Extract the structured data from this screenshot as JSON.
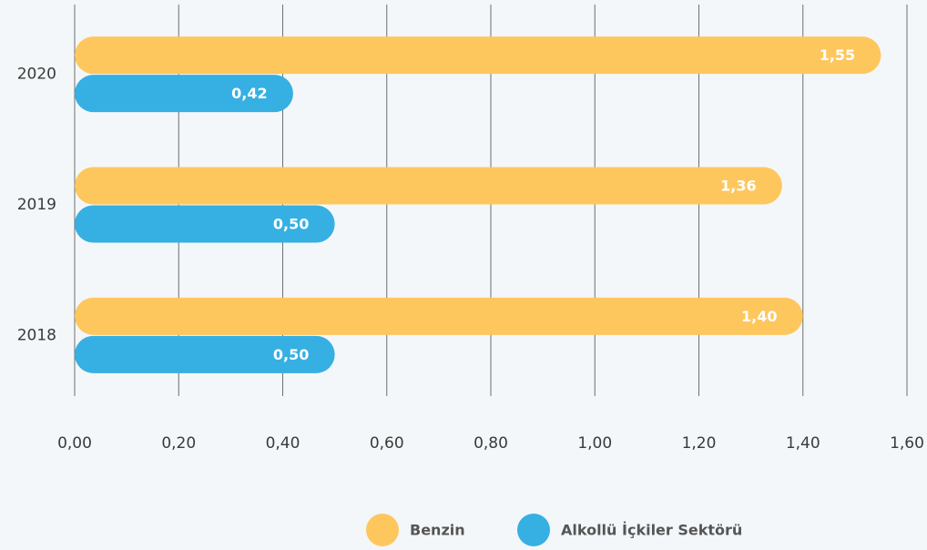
{
  "chart_data": {
    "type": "barh",
    "categories": [
      "2020",
      "2019",
      "2018"
    ],
    "series": [
      {
        "name": "Benzin",
        "color": "#fec75e",
        "values": [
          1.55,
          1.36,
          1.4
        ],
        "value_labels": [
          "1,55",
          "1,36",
          "1,40"
        ]
      },
      {
        "name": "Alkollü İçkiler Sektörü",
        "color": "#36b0e2",
        "values": [
          0.42,
          0.5,
          0.5
        ],
        "value_labels": [
          "0,42",
          "0,50",
          "0,50"
        ]
      }
    ],
    "xlim": [
      0,
      1.6
    ],
    "xticks": [
      {
        "value": 0,
        "label": "0,00"
      },
      {
        "value": 0.2,
        "label": "0,20"
      },
      {
        "value": 0.4,
        "label": "0,40"
      },
      {
        "value": 0.6,
        "label": "0,60"
      },
      {
        "value": 0.8,
        "label": "0,80"
      },
      {
        "value": 1.0,
        "label": "1,00"
      },
      {
        "value": 1.2,
        "label": "1,20"
      },
      {
        "value": 1.4,
        "label": "1,40"
      },
      {
        "value": 1.6,
        "label": "1,60"
      }
    ],
    "grid": true,
    "legend": "bottom"
  }
}
